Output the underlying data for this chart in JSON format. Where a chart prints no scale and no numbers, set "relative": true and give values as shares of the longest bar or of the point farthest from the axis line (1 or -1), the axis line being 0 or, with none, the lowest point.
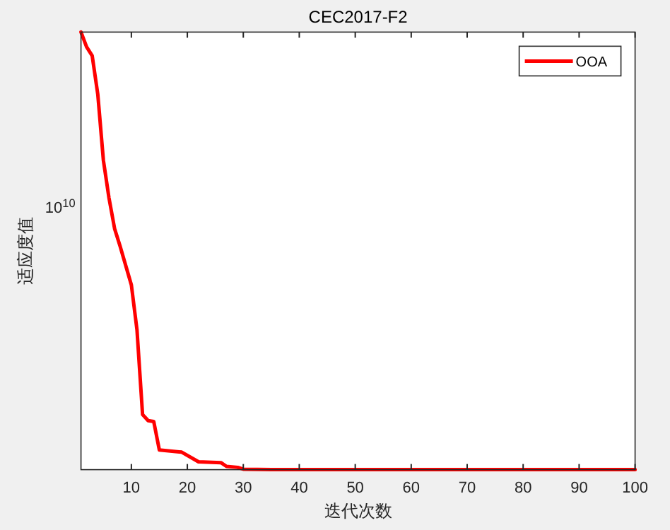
{
  "chart_data": {
    "type": "line",
    "title": "CEC2017-F2",
    "xlabel": "迭代次数",
    "ylabel": "适应度值",
    "relative": true,
    "xlim": [
      1,
      100
    ],
    "xticks": [
      10,
      20,
      30,
      40,
      50,
      60,
      70,
      80,
      90,
      100
    ],
    "annotations": [
      "10$^{10}$"
    ],
    "grid": false,
    "legend": "top right",
    "marker": "none",
    "line_style": "solid",
    "series": [
      {
        "name": "OOA",
        "color": "#ff0000",
        "x": [
          1,
          2,
          3,
          4,
          5,
          6,
          7,
          8,
          9,
          10,
          11,
          12,
          13,
          14,
          15,
          19,
          22,
          26,
          27,
          29,
          30,
          35,
          40,
          100
        ],
        "values": [
          1,
          0.966,
          0.946,
          0.858,
          0.707,
          0.621,
          0.551,
          0.51,
          0.466,
          0.422,
          0.32,
          0.126,
          0.112,
          0.11,
          0.045,
          0.04,
          0.018,
          0.016,
          0.0074,
          0.0052,
          0.001,
          0,
          0,
          0
        ]
      }
    ]
  }
}
